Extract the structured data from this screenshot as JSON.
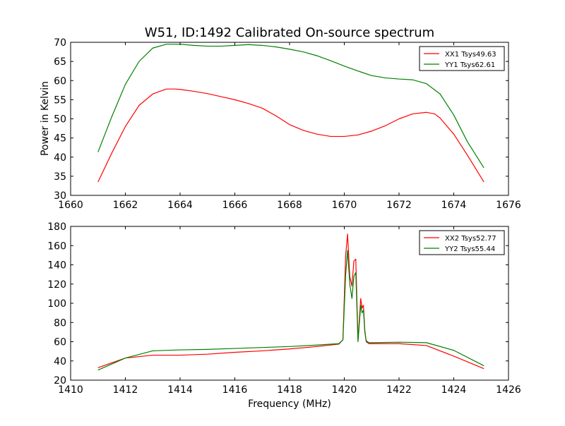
{
  "title": "W51, ID:1492 Calibrated On-source spectrum",
  "ylabel": "Power in Kelvin",
  "xlabel": "Frequency (MHz)",
  "chart_data": [
    {
      "type": "line",
      "title": "W51, ID:1492 Calibrated On-source spectrum",
      "xlabel": "",
      "ylabel": "Power in Kelvin",
      "xlim": [
        1660,
        1676
      ],
      "ylim": [
        30,
        70
      ],
      "xticks": [
        1660,
        1662,
        1664,
        1666,
        1668,
        1670,
        1672,
        1674,
        1676
      ],
      "yticks": [
        30,
        35,
        40,
        45,
        50,
        55,
        60,
        65,
        70
      ],
      "legend_position": "top-right",
      "series": [
        {
          "name": "XX1 Tsys49.63",
          "color": "#ff0000",
          "x": [
            1661.0,
            1661.5,
            1662.0,
            1662.5,
            1663.0,
            1663.5,
            1663.8,
            1664.0,
            1664.5,
            1665.0,
            1665.5,
            1666.0,
            1666.5,
            1667.0,
            1667.5,
            1668.0,
            1668.5,
            1669.0,
            1669.5,
            1670.0,
            1670.5,
            1671.0,
            1671.5,
            1672.0,
            1672.5,
            1673.0,
            1673.3,
            1673.5,
            1674.0,
            1674.5,
            1675.1
          ],
          "y": [
            33.5,
            41.0,
            48.0,
            53.5,
            56.5,
            57.8,
            57.8,
            57.7,
            57.2,
            56.6,
            55.8,
            55.0,
            54.0,
            52.8,
            50.8,
            48.5,
            47.0,
            46.0,
            45.4,
            45.4,
            45.8,
            46.8,
            48.2,
            50.0,
            51.3,
            51.7,
            51.3,
            50.2,
            46.0,
            40.5,
            33.5
          ]
        },
        {
          "name": "YY1 Tsys62.61",
          "color": "#008000",
          "x": [
            1661.0,
            1661.5,
            1662.0,
            1662.5,
            1663.0,
            1663.5,
            1664.0,
            1664.5,
            1665.0,
            1665.5,
            1666.0,
            1666.5,
            1667.0,
            1667.5,
            1668.0,
            1668.5,
            1669.0,
            1669.5,
            1670.0,
            1670.5,
            1671.0,
            1671.5,
            1672.0,
            1672.5,
            1673.0,
            1673.5,
            1674.0,
            1674.5,
            1675.1
          ],
          "y": [
            41.3,
            50.5,
            59.0,
            65.0,
            68.5,
            69.5,
            69.5,
            69.2,
            69.0,
            69.0,
            69.2,
            69.4,
            69.2,
            68.8,
            68.2,
            67.5,
            66.5,
            65.2,
            63.8,
            62.5,
            61.3,
            60.7,
            60.4,
            60.2,
            59.2,
            56.5,
            51.0,
            44.0,
            37.2
          ]
        }
      ]
    },
    {
      "type": "line",
      "title": "",
      "xlabel": "Frequency (MHz)",
      "ylabel": "",
      "xlim": [
        1410,
        1426
      ],
      "ylim": [
        20,
        180
      ],
      "xticks": [
        1410,
        1412,
        1414,
        1416,
        1418,
        1420,
        1422,
        1424,
        1426
      ],
      "yticks": [
        20,
        40,
        60,
        80,
        100,
        120,
        140,
        160,
        180
      ],
      "legend_position": "top-right",
      "series": [
        {
          "name": "XX2 Tsys52.77",
          "color": "#ff0000",
          "x": [
            1411.0,
            1412.0,
            1413.0,
            1414.0,
            1415.0,
            1416.0,
            1417.0,
            1418.0,
            1419.0,
            1419.8,
            1419.95,
            1420.05,
            1420.12,
            1420.2,
            1420.28,
            1420.35,
            1420.42,
            1420.5,
            1420.6,
            1420.65,
            1420.7,
            1420.75,
            1420.8,
            1420.9,
            1421.0,
            1422.0,
            1423.0,
            1424.0,
            1425.1
          ],
          "y": [
            33.0,
            43.0,
            46.0,
            46.0,
            47.0,
            49.0,
            50.5,
            52.5,
            55.0,
            57.5,
            62.0,
            150.0,
            172.0,
            128.0,
            118.0,
            144.0,
            146.0,
            62.0,
            105.0,
            95.0,
            98.0,
            72.0,
            60.0,
            58.0,
            58.0,
            58.0,
            56.0,
            45.0,
            32.0
          ]
        },
        {
          "name": "YY2 Tsys55.44",
          "color": "#008000",
          "x": [
            1411.0,
            1412.0,
            1413.0,
            1414.0,
            1415.0,
            1416.0,
            1417.0,
            1418.0,
            1419.0,
            1419.8,
            1419.95,
            1420.05,
            1420.12,
            1420.2,
            1420.28,
            1420.35,
            1420.42,
            1420.5,
            1420.6,
            1420.65,
            1420.7,
            1420.75,
            1420.8,
            1420.9,
            1421.0,
            1422.0,
            1423.0,
            1424.0,
            1425.1
          ],
          "y": [
            30.5,
            43.0,
            50.5,
            51.5,
            52.0,
            53.0,
            54.0,
            55.0,
            56.5,
            58.0,
            62.0,
            130.0,
            155.0,
            120.0,
            105.0,
            128.0,
            132.0,
            60.0,
            98.0,
            90.0,
            93.0,
            70.0,
            61.0,
            59.0,
            59.0,
            59.5,
            59.0,
            51.0,
            35.0
          ]
        }
      ]
    }
  ]
}
